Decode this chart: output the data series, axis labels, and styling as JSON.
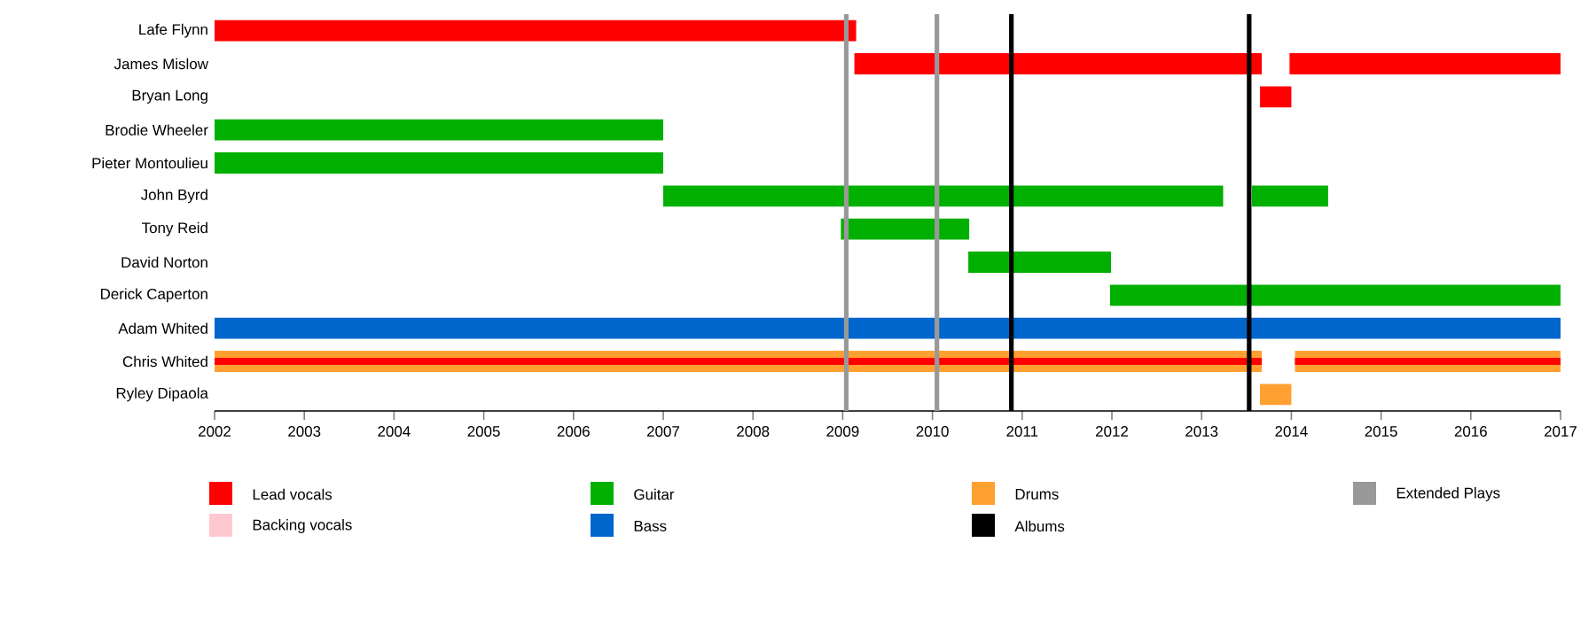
{
  "chart_data": {
    "type": "bar",
    "orientation": "horizontal",
    "legend": "bottom",
    "categories": [
      "Lafe Flynn",
      "James Mislow",
      "Bryan Long",
      "Brodie Wheeler",
      "Pieter Montoulieu",
      "John Byrd",
      "Tony Reid",
      "David Norton",
      "Derick Caperton",
      "Adam Whited",
      "Chris Whited",
      "Ryley Dipaola"
    ],
    "xlim": [
      2002,
      2017
    ],
    "xticks": [
      2002,
      2003,
      2004,
      2005,
      2006,
      2007,
      2008,
      2009,
      2010,
      2011,
      2012,
      2013,
      2014,
      2015,
      2016,
      2017
    ],
    "series": [
      {
        "name": "Lead vocals",
        "color": "#ff0000",
        "base": [
          2002,
          2009.13,
          2013.65,
          null,
          null,
          null,
          null,
          null,
          null,
          null,
          null,
          null
        ],
        "values": [
          7.15,
          4.54,
          0.35,
          null,
          null,
          null,
          null,
          null,
          null,
          null,
          null,
          null
        ]
      },
      {
        "color": "#ff0000",
        "base": [
          null,
          2013.98,
          null,
          null,
          null,
          null,
          null,
          null,
          null,
          null,
          null,
          null
        ],
        "values": [
          null,
          3.02,
          null,
          null,
          null,
          null,
          null,
          null,
          null,
          null,
          null,
          null
        ]
      },
      {
        "name": "Backing vocals",
        "color": "#ffc8d0",
        "base": [
          null,
          null,
          null,
          null,
          null,
          null,
          null,
          null,
          null,
          null,
          null,
          null
        ],
        "values": [
          null,
          null,
          null,
          null,
          null,
          null,
          null,
          null,
          null,
          null,
          null,
          null
        ]
      },
      {
        "name": "Guitar",
        "color": "#00b000",
        "base": [
          null,
          null,
          null,
          2002,
          2002,
          2007,
          2008.98,
          2010.4,
          2011.98,
          null,
          null,
          null
        ],
        "values": [
          null,
          null,
          null,
          5,
          5,
          6.24,
          1.43,
          1.59,
          5.02,
          null,
          null,
          null
        ]
      },
      {
        "color": "#00b000",
        "base": [
          null,
          null,
          null,
          null,
          null,
          2013.56,
          null,
          null,
          null,
          null,
          null,
          null
        ],
        "values": [
          null,
          null,
          null,
          null,
          null,
          0.85,
          null,
          null,
          null,
          null,
          null,
          null
        ]
      },
      {
        "name": "Bass",
        "color": "#0066cc",
        "base": [
          null,
          null,
          null,
          null,
          null,
          null,
          null,
          null,
          null,
          2002,
          null,
          null
        ],
        "values": [
          null,
          null,
          null,
          null,
          null,
          null,
          null,
          null,
          null,
          15,
          null,
          null
        ]
      },
      {
        "name": "Drums",
        "color": "#ffa030",
        "base": [
          null,
          null,
          null,
          null,
          null,
          null,
          null,
          null,
          null,
          null,
          2002,
          2013.65
        ],
        "values": [
          null,
          null,
          null,
          null,
          null,
          null,
          null,
          null,
          null,
          null,
          11.67,
          0.35
        ]
      },
      {
        "color": "#ffa030",
        "base": [
          null,
          null,
          null,
          null,
          null,
          null,
          null,
          null,
          null,
          null,
          2014.04,
          null
        ],
        "values": [
          null,
          null,
          null,
          null,
          null,
          null,
          null,
          null,
          null,
          null,
          2.96,
          null
        ]
      },
      {
        "color": "#ff0000",
        "base": [
          null,
          null,
          null,
          null,
          null,
          null,
          null,
          null,
          null,
          null,
          2002,
          null
        ],
        "values": [
          null,
          null,
          null,
          null,
          null,
          null,
          null,
          null,
          null,
          null,
          11.67,
          null
        ]
      },
      {
        "color": "#ff0000",
        "base": [
          null,
          null,
          null,
          null,
          null,
          null,
          null,
          null,
          null,
          null,
          2014.04,
          null
        ],
        "values": [
          null,
          null,
          null,
          null,
          null,
          null,
          null,
          null,
          null,
          null,
          2.96,
          null
        ]
      }
    ],
    "ref_lines": [
      {
        "axis": "x",
        "value": 2010.88,
        "label": "Albums",
        "color": "#000000"
      },
      {
        "axis": "x",
        "value": 2013.53,
        "color": "#000000"
      },
      {
        "axis": "x",
        "value": 2009.04,
        "label": "Extended Plays",
        "color": "#999999"
      },
      {
        "axis": "x",
        "value": 2010.05,
        "color": "#999999"
      }
    ]
  }
}
